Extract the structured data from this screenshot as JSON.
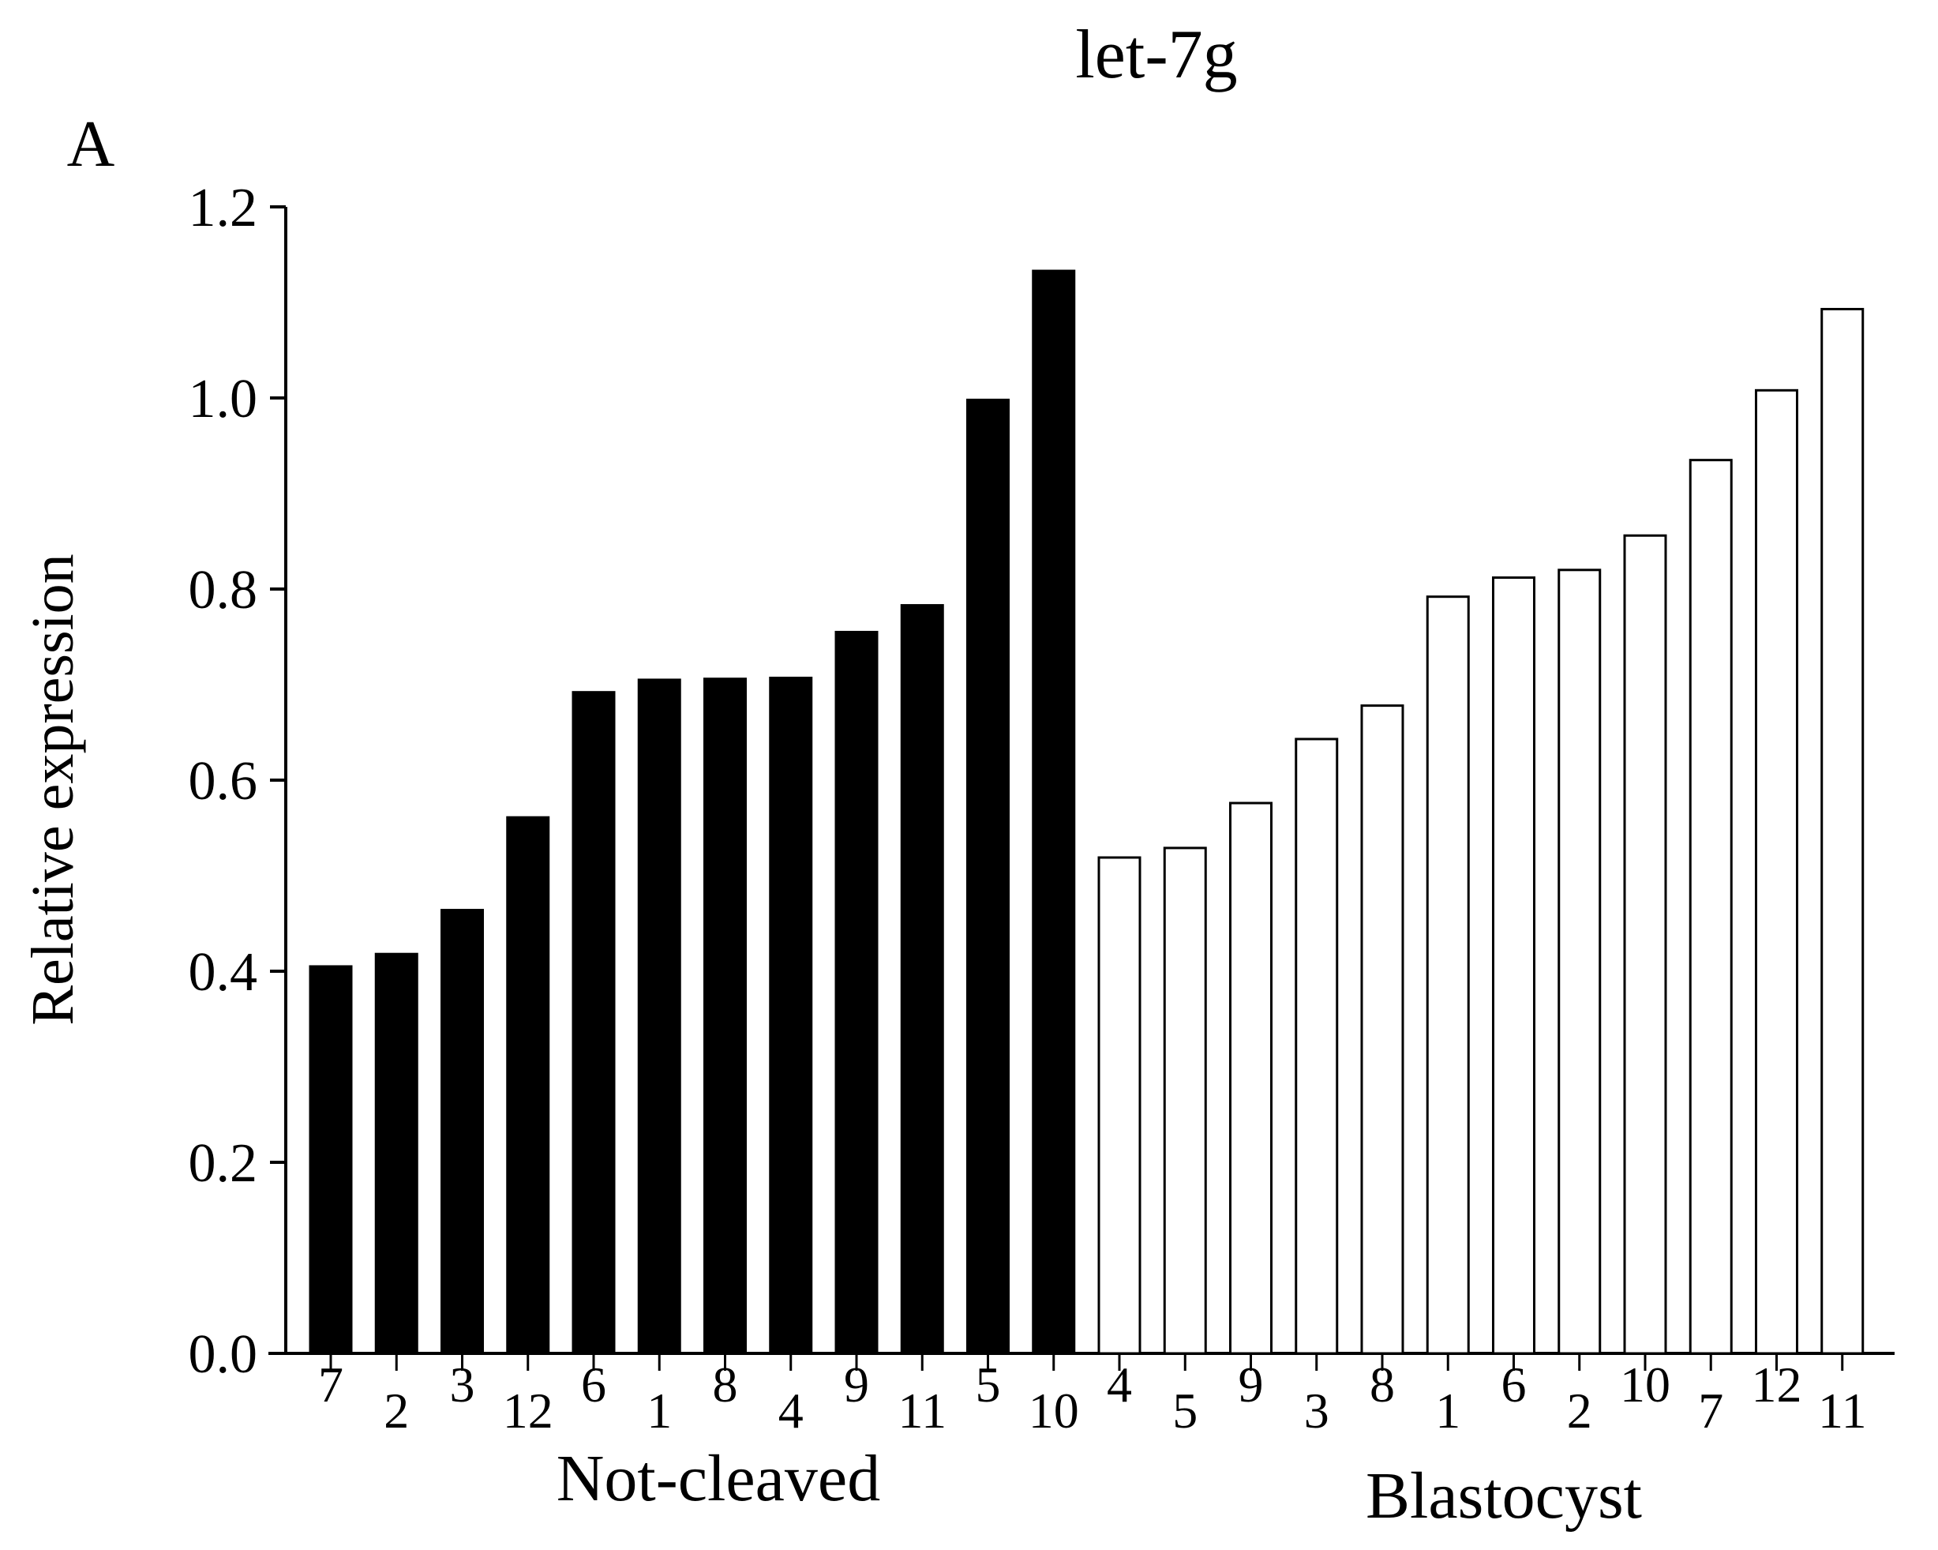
{
  "chart_data": {
    "type": "bar",
    "title": "let-7g",
    "panel_label": "A",
    "ylabel": "Relative expression",
    "xlabel": "",
    "ylim": [
      0,
      1.2
    ],
    "yticks": [
      "0.0",
      "0.2",
      "0.4",
      "0.6",
      "0.8",
      "1.0",
      "1.2"
    ],
    "grid": false,
    "legend": "none",
    "groups": [
      {
        "name": "Not-cleaved",
        "fill": "#000000",
        "categories": [
          "7",
          "2",
          "3",
          "12",
          "6",
          "1",
          "8",
          "4",
          "9",
          "11",
          "5",
          "10"
        ],
        "values": [
          0.405,
          0.418,
          0.464,
          0.561,
          0.692,
          0.705,
          0.706,
          0.707,
          0.755,
          0.783,
          0.998,
          1.133
        ]
      },
      {
        "name": "Blastocyst",
        "fill": "#ffffff",
        "categories": [
          "4",
          "5",
          "9",
          "3",
          "8",
          "1",
          "6",
          "2",
          "10",
          "7",
          "12",
          "11"
        ],
        "values": [
          0.519,
          0.529,
          0.576,
          0.643,
          0.678,
          0.792,
          0.812,
          0.82,
          0.856,
          0.935,
          1.008,
          1.093
        ]
      }
    ]
  },
  "colors": {
    "axis": "#000000",
    "bar_edge": "#000000"
  }
}
